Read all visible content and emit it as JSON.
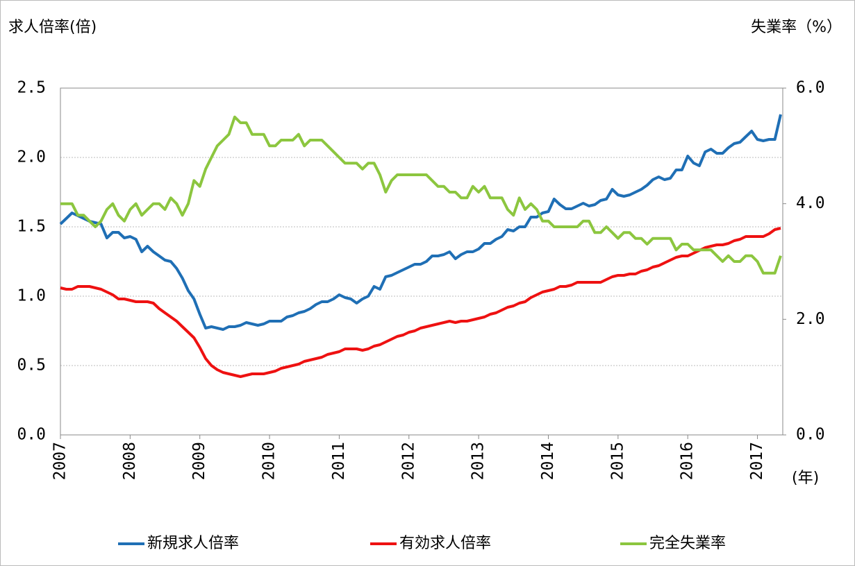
{
  "chart_data": {
    "type": "line",
    "y_label": "求人倍率(倍)",
    "y2_label": "失業率（%）",
    "x_label": "(年)",
    "categories": [
      "2007",
      null,
      null,
      null,
      null,
      null,
      null,
      null,
      null,
      null,
      null,
      null,
      "2008",
      null,
      null,
      null,
      null,
      null,
      null,
      null,
      null,
      null,
      null,
      null,
      "2009",
      null,
      null,
      null,
      null,
      null,
      null,
      null,
      null,
      null,
      null,
      null,
      "2010",
      null,
      null,
      null,
      null,
      null,
      null,
      null,
      null,
      null,
      null,
      null,
      "2011",
      null,
      null,
      null,
      null,
      null,
      null,
      null,
      null,
      null,
      null,
      null,
      "2012",
      null,
      null,
      null,
      null,
      null,
      null,
      null,
      null,
      null,
      null,
      null,
      "2013",
      null,
      null,
      null,
      null,
      null,
      null,
      null,
      null,
      null,
      null,
      null,
      "2014",
      null,
      null,
      null,
      null,
      null,
      null,
      null,
      null,
      null,
      null,
      null,
      "2015",
      null,
      null,
      null,
      null,
      null,
      null,
      null,
      null,
      null,
      null,
      null,
      "2016",
      null,
      null,
      null,
      null,
      null,
      null,
      null,
      null,
      null,
      null,
      null,
      "2017",
      null,
      null,
      null,
      null
    ],
    "series": [
      {
        "name": "新規求人倍率",
        "color": "#1f6fb5",
        "values": [
          1.52,
          1.56,
          1.6,
          1.58,
          1.56,
          1.54,
          1.53,
          1.52,
          1.42,
          1.46,
          1.46,
          1.42,
          1.43,
          1.41,
          1.32,
          1.36,
          1.32,
          1.29,
          1.26,
          1.25,
          1.2,
          1.13,
          1.04,
          0.98,
          0.87,
          0.77,
          0.78,
          0.77,
          0.76,
          0.78,
          0.78,
          0.79,
          0.81,
          0.8,
          0.79,
          0.8,
          0.82,
          0.82,
          0.82,
          0.85,
          0.86,
          0.88,
          0.89,
          0.91,
          0.94,
          0.96,
          0.96,
          0.98,
          1.01,
          0.99,
          0.98,
          0.95,
          0.98,
          1.0,
          1.07,
          1.05,
          1.14,
          1.15,
          1.17,
          1.19,
          1.21,
          1.23,
          1.23,
          1.25,
          1.29,
          1.29,
          1.3,
          1.32,
          1.27,
          1.3,
          1.32,
          1.32,
          1.34,
          1.38,
          1.38,
          1.41,
          1.43,
          1.48,
          1.47,
          1.5,
          1.5,
          1.57,
          1.57,
          1.6,
          1.61,
          1.7,
          1.66,
          1.63,
          1.63,
          1.65,
          1.67,
          1.65,
          1.66,
          1.69,
          1.7,
          1.77,
          1.73,
          1.72,
          1.73,
          1.75,
          1.77,
          1.8,
          1.84,
          1.86,
          1.84,
          1.85,
          1.91,
          1.91,
          2.01,
          1.96,
          1.94,
          2.04,
          2.06,
          2.03,
          2.03,
          2.07,
          2.1,
          2.11,
          2.15,
          2.19,
          2.13,
          2.12,
          2.13,
          2.13,
          2.31
        ]
      },
      {
        "name": "有効求人倍率",
        "color": "#ee1111",
        "values": [
          1.06,
          1.05,
          1.05,
          1.07,
          1.07,
          1.07,
          1.06,
          1.05,
          1.03,
          1.01,
          0.98,
          0.98,
          0.97,
          0.96,
          0.96,
          0.96,
          0.95,
          0.91,
          0.88,
          0.85,
          0.82,
          0.78,
          0.74,
          0.7,
          0.63,
          0.55,
          0.5,
          0.47,
          0.45,
          0.44,
          0.43,
          0.42,
          0.43,
          0.44,
          0.44,
          0.44,
          0.45,
          0.46,
          0.48,
          0.49,
          0.5,
          0.51,
          0.53,
          0.54,
          0.55,
          0.56,
          0.58,
          0.59,
          0.6,
          0.62,
          0.62,
          0.62,
          0.61,
          0.62,
          0.64,
          0.65,
          0.67,
          0.69,
          0.71,
          0.72,
          0.74,
          0.75,
          0.77,
          0.78,
          0.79,
          0.8,
          0.81,
          0.82,
          0.81,
          0.82,
          0.82,
          0.83,
          0.84,
          0.85,
          0.87,
          0.88,
          0.9,
          0.92,
          0.93,
          0.95,
          0.96,
          0.99,
          1.01,
          1.03,
          1.04,
          1.05,
          1.07,
          1.07,
          1.08,
          1.1,
          1.1,
          1.1,
          1.1,
          1.1,
          1.12,
          1.14,
          1.15,
          1.15,
          1.16,
          1.16,
          1.18,
          1.19,
          1.21,
          1.22,
          1.24,
          1.26,
          1.28,
          1.29,
          1.29,
          1.31,
          1.33,
          1.35,
          1.36,
          1.37,
          1.37,
          1.38,
          1.4,
          1.41,
          1.43,
          1.43,
          1.43,
          1.43,
          1.45,
          1.48,
          1.49
        ]
      },
      {
        "name": "完全失業率",
        "color": "#8cc63f",
        "axis": "y2",
        "values": [
          4.0,
          4.0,
          4.0,
          3.8,
          3.8,
          3.7,
          3.6,
          3.7,
          3.9,
          4.0,
          3.8,
          3.7,
          3.9,
          4.0,
          3.8,
          3.9,
          4.0,
          4.0,
          3.9,
          4.1,
          4.0,
          3.8,
          4.0,
          4.4,
          4.3,
          4.6,
          4.8,
          5.0,
          5.1,
          5.2,
          5.5,
          5.4,
          5.4,
          5.2,
          5.2,
          5.2,
          5.0,
          5.0,
          5.1,
          5.1,
          5.1,
          5.2,
          5.0,
          5.1,
          5.1,
          5.1,
          5.0,
          4.9,
          4.8,
          4.7,
          4.7,
          4.7,
          4.6,
          4.7,
          4.7,
          4.5,
          4.2,
          4.4,
          4.5,
          4.5,
          4.5,
          4.5,
          4.5,
          4.5,
          4.4,
          4.3,
          4.3,
          4.2,
          4.2,
          4.1,
          4.1,
          4.3,
          4.2,
          4.3,
          4.1,
          4.1,
          4.1,
          3.9,
          3.8,
          4.1,
          3.9,
          4.0,
          3.9,
          3.7,
          3.7,
          3.6,
          3.6,
          3.6,
          3.6,
          3.6,
          3.7,
          3.7,
          3.5,
          3.5,
          3.6,
          3.5,
          3.4,
          3.5,
          3.5,
          3.4,
          3.4,
          3.3,
          3.4,
          3.4,
          3.4,
          3.4,
          3.2,
          3.3,
          3.3,
          3.2,
          3.2,
          3.2,
          3.2,
          3.1,
          3.0,
          3.1,
          3.0,
          3.0,
          3.1,
          3.1,
          3.0,
          2.8,
          2.8,
          2.8,
          3.1
        ]
      }
    ],
    "ylim": [
      0,
      2.5
    ],
    "yticks": [
      {
        "value": 0,
        "label": "0.0"
      },
      0.5,
      {
        "value": 1,
        "label": "1.0"
      },
      1.5,
      {
        "value": 2,
        "label": "2.0"
      },
      2.5
    ],
    "y2lim": [
      0,
      6
    ],
    "y2ticks": [
      {
        "value": 0,
        "label": "0.0"
      },
      {
        "value": 2,
        "label": "2.0"
      },
      {
        "value": 4,
        "label": "4.0"
      },
      {
        "value": 6,
        "label": "6.0"
      }
    ],
    "grid": true,
    "legend": "bottom"
  }
}
